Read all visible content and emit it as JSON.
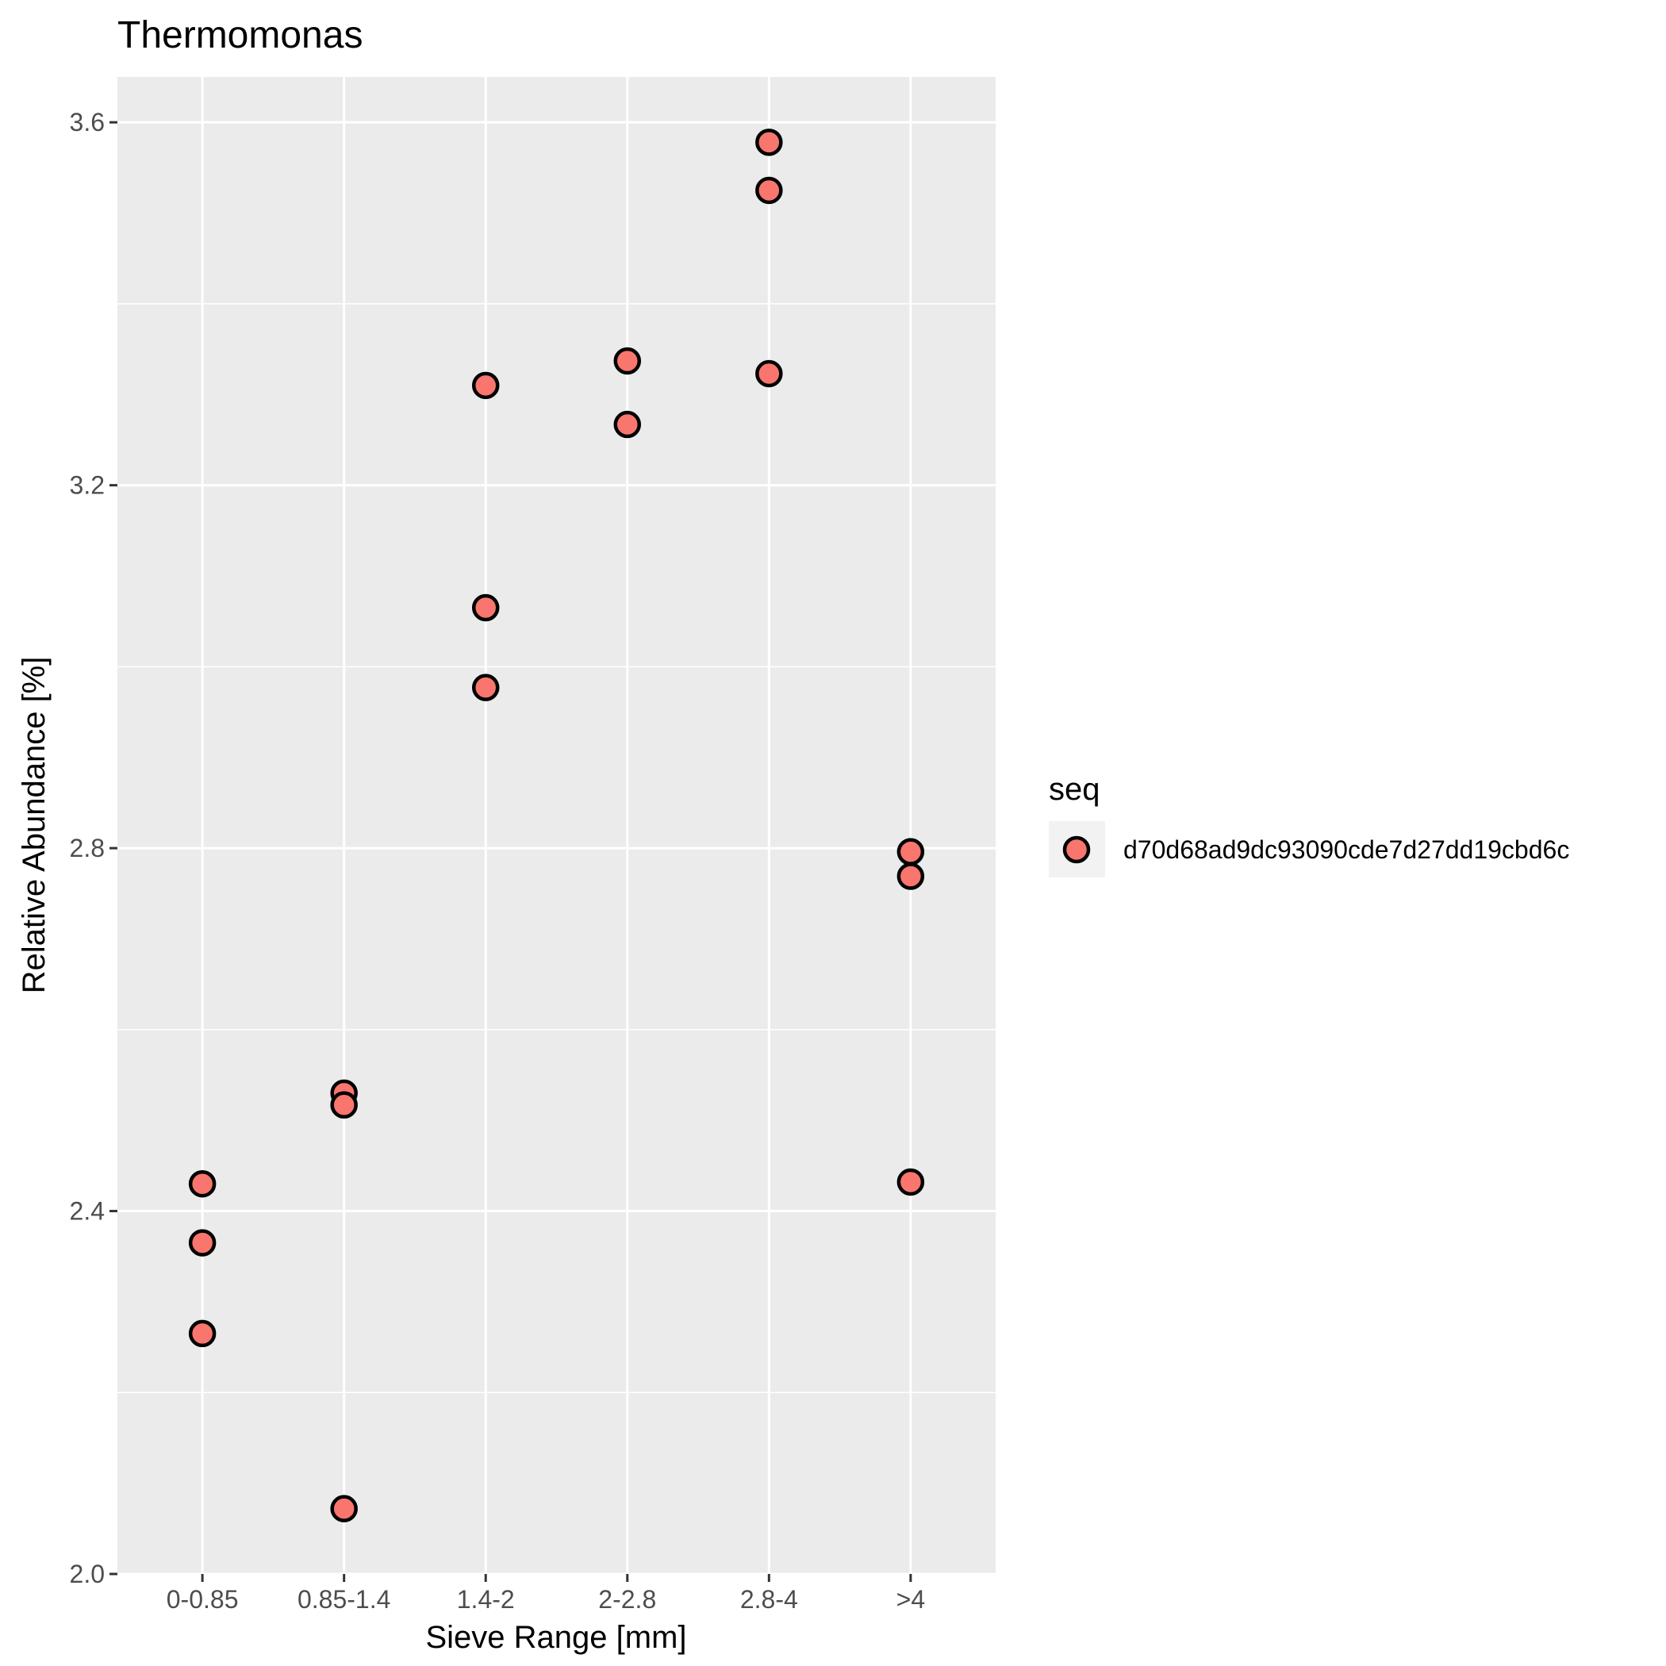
{
  "chart_data": {
    "type": "scatter",
    "title": "Thermomonas",
    "xlabel": "Sieve Range [mm]",
    "ylabel": "Relative Abundance [%]",
    "categories": [
      "0-0.85",
      "0.85-1.4",
      "1.4-2",
      "2-2.8",
      "2.8-4",
      ">4"
    ],
    "ylim": [
      2.0,
      3.65
    ],
    "yticks": [
      "2.0",
      "2.4",
      "2.8",
      "3.2",
      "3.6"
    ],
    "grid": true,
    "legend": {
      "title": "seq",
      "position": "right"
    },
    "series": [
      {
        "name": "d70d68ad9dc93090cde7d27dd19cbd6c",
        "color": "#f8766d",
        "points": [
          {
            "x": "0-0.85",
            "y": 2.43
          },
          {
            "x": "0-0.85",
            "y": 2.365
          },
          {
            "x": "0-0.85",
            "y": 2.265
          },
          {
            "x": "0.85-1.4",
            "y": 2.53
          },
          {
            "x": "0.85-1.4",
            "y": 2.517
          },
          {
            "x": "0.85-1.4",
            "y": 2.072
          },
          {
            "x": "1.4-2",
            "y": 3.31
          },
          {
            "x": "1.4-2",
            "y": 3.065
          },
          {
            "x": "1.4-2",
            "y": 2.977
          },
          {
            "x": "2-2.8",
            "y": 3.337
          },
          {
            "x": "2-2.8",
            "y": 3.267
          },
          {
            "x": "2.8-4",
            "y": 3.578
          },
          {
            "x": "2.8-4",
            "y": 3.525
          },
          {
            "x": "2.8-4",
            "y": 3.323
          },
          {
            "x": ">4",
            "y": 2.796
          },
          {
            "x": ">4",
            "y": 2.769
          },
          {
            "x": ">4",
            "y": 2.432
          }
        ]
      }
    ]
  }
}
